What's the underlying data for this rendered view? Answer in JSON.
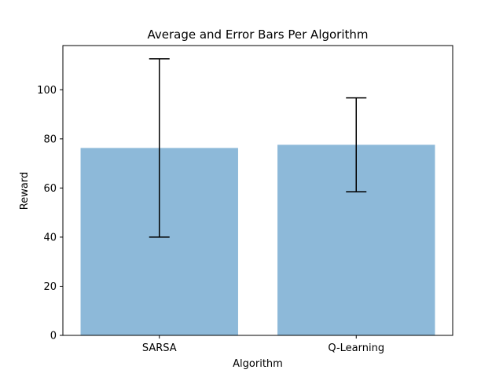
{
  "chart_data": {
    "type": "bar",
    "title": "Average and Error Bars Per Algorithm",
    "xlabel": "Algorithm",
    "ylabel": "Reward",
    "categories": [
      "SARSA",
      "Q-Learning"
    ],
    "values": [
      76.3,
      77.6
    ],
    "errors": [
      36.3,
      19.1
    ],
    "ylim": [
      0,
      118
    ],
    "yticks": [
      0,
      20,
      40,
      60,
      80,
      100
    ],
    "grid": false,
    "bar_color": "#8db9d9",
    "error_color": "#000000"
  }
}
